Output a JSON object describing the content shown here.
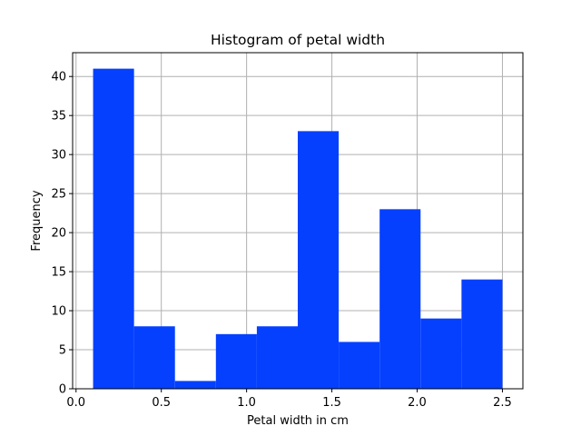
{
  "chart_data": {
    "type": "bar",
    "title": "Histogram of petal width",
    "xlabel": "Petal width in cm",
    "ylabel": "Frequency",
    "bin_edges": [
      0.1,
      0.34,
      0.58,
      0.82,
      1.06,
      1.3,
      1.54,
      1.78,
      2.02,
      2.26,
      2.5
    ],
    "values": [
      41,
      8,
      1,
      7,
      8,
      33,
      6,
      23,
      9,
      14
    ],
    "xlim": [
      -0.02,
      2.62
    ],
    "ylim": [
      0,
      43.05
    ],
    "xticks": [
      0.0,
      0.5,
      1.0,
      1.5,
      2.0,
      2.5
    ],
    "xtick_labels": [
      "0.0",
      "0.5",
      "1.0",
      "1.5",
      "2.0",
      "2.5"
    ],
    "yticks": [
      0,
      5,
      10,
      15,
      20,
      25,
      30,
      35,
      40
    ],
    "ytick_labels": [
      "0",
      "5",
      "10",
      "15",
      "20",
      "25",
      "30",
      "35",
      "40"
    ],
    "grid": true,
    "bar_color": "#0540ff",
    "grid_color": "#b0b0b0"
  }
}
